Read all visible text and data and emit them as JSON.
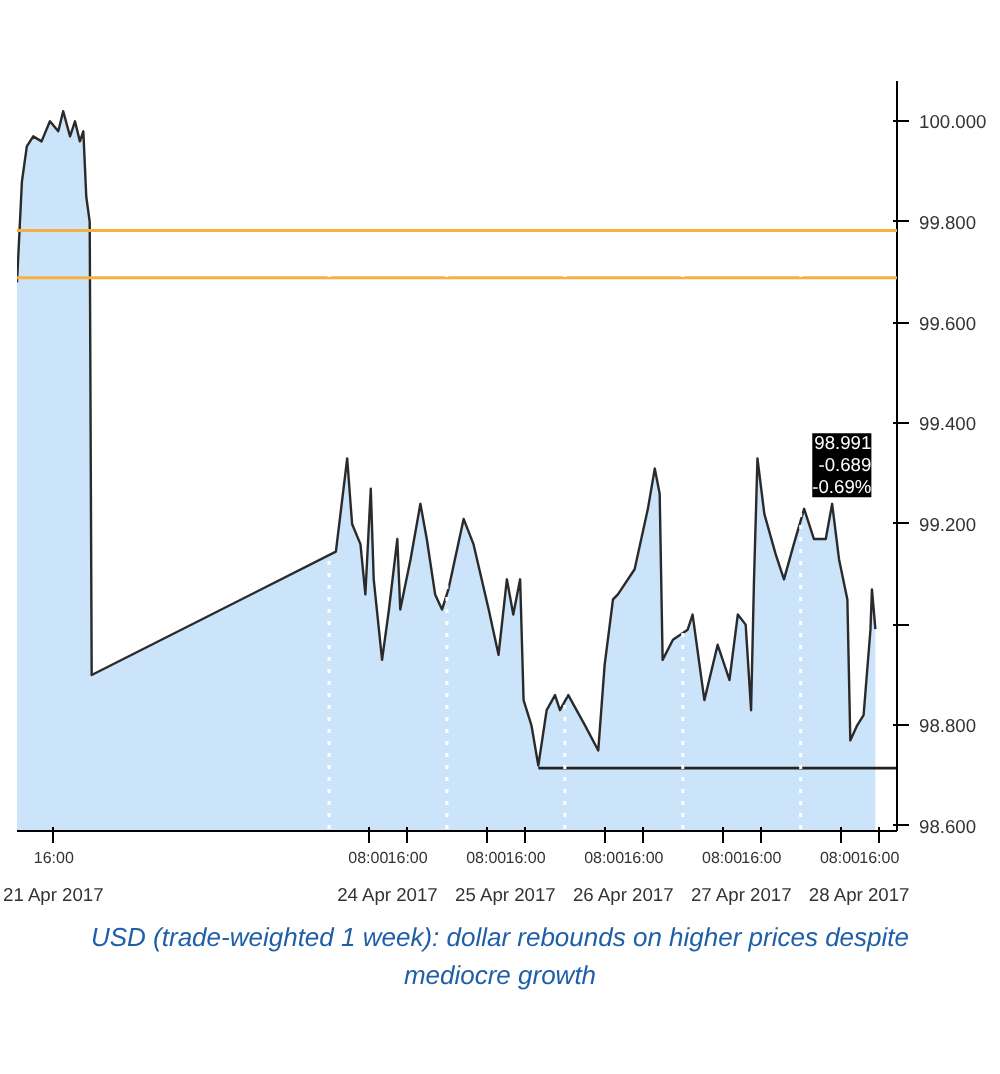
{
  "chart_data": {
    "type": "area",
    "x": [
      "2017-04-21T08:30",
      "2017-04-21T09:30",
      "2017-04-21T10:30",
      "2017-04-21T11:48",
      "2017-04-21T13:30",
      "2017-04-21T15:12",
      "2017-04-21T16:54",
      "2017-04-21T17:54",
      "2017-04-21T19:18",
      "2017-04-21T20:18",
      "2017-04-21T21:18",
      "2017-04-21T22:00",
      "2017-04-21T22:36",
      "2017-04-21T23:18",
      "2017-04-21T23:42",
      "2017-04-24T01:24",
      "2017-04-24T03:42",
      "2017-04-24T04:42",
      "2017-04-24T06:24",
      "2017-04-24T07:24",
      "2017-04-24T08:30",
      "2017-04-24T09:06",
      "2017-04-24T10:48",
      "2017-04-24T12:12",
      "2017-04-24T13:54",
      "2017-04-24T14:30",
      "2017-04-24T16:36",
      "2017-04-24T18:36",
      "2017-04-24T19:54",
      "2017-04-24T21:36",
      "2017-04-24T23:00",
      "2017-04-25T00:18",
      "2017-04-25T03:24",
      "2017-04-25T05:24",
      "2017-04-25T08:30",
      "2017-04-25T10:30",
      "2017-04-25T12:12",
      "2017-04-25T13:30",
      "2017-04-25T14:54",
      "2017-04-25T15:36",
      "2017-04-25T17:12",
      "2017-04-25T18:36",
      "2017-04-25T20:18",
      "2017-04-25T22:00",
      "2017-04-25T23:00",
      "2017-04-26T00:42",
      "2017-04-26T04:06",
      "2017-04-26T06:48",
      "2017-04-26T08:06",
      "2017-04-26T09:48",
      "2017-04-26T10:48",
      "2017-04-26T14:12",
      "2017-04-26T16:54",
      "2017-04-26T18:18",
      "2017-04-26T19:18",
      "2017-04-26T19:54",
      "2017-04-26T22:00",
      "2017-04-27T01:00",
      "2017-04-27T02:00",
      "2017-04-27T04:24",
      "2017-04-27T07:06",
      "2017-04-27T09:30",
      "2017-04-27T11:12",
      "2017-04-27T12:48",
      "2017-04-27T13:54",
      "2017-04-27T14:30",
      "2017-04-27T15:12",
      "2017-04-27T16:36",
      "2017-04-27T18:54",
      "2017-04-27T20:36",
      "2017-04-27T22:36",
      "2017-04-28T00:42",
      "2017-04-28T02:42",
      "2017-04-28T05:06",
      "2017-04-28T06:24",
      "2017-04-28T07:48",
      "2017-04-28T09:30",
      "2017-04-28T10:06",
      "2017-04-28T11:30",
      "2017-04-28T12:48",
      "2017-04-28T14:12",
      "2017-04-28T14:30",
      "2017-04-28T15:12"
    ],
    "series": [
      {
        "color": "#cce4fa",
        "values": [
          99.68,
          99.88,
          99.95,
          99.97,
          99.96,
          100.0,
          99.98,
          100.02,
          99.97,
          100.0,
          99.96,
          99.98,
          99.85,
          99.8,
          98.9,
          99.145,
          99.33,
          99.2,
          99.16,
          99.06,
          99.27,
          99.09,
          98.93,
          99.03,
          99.17,
          99.03,
          99.13,
          99.24,
          99.17,
          99.06,
          99.03,
          99.07,
          99.21,
          99.16,
          99.03,
          98.94,
          99.09,
          99.02,
          99.09,
          98.85,
          98.8,
          98.72,
          98.83,
          98.86,
          98.83,
          98.86,
          98.8,
          98.75,
          98.92,
          99.05,
          99.06,
          99.11,
          99.23,
          99.31,
          99.26,
          98.93,
          98.97,
          98.99,
          99.02,
          98.85,
          98.96,
          98.89,
          99.02,
          99.0,
          98.83,
          99.09,
          99.33,
          99.22,
          99.14,
          99.09,
          99.16,
          99.23,
          99.17,
          99.17,
          99.24,
          99.13,
          99.05,
          98.77,
          98.8,
          98.82,
          98.99,
          99.07,
          98.991
        ]
      },
      {
        "type": "line",
        "color": "#222222",
        "x": [
          "2017-04-25T18:36",
          "2017-04-28T19:36"
        ],
        "values": [
          98.715,
          98.715
        ]
      }
    ],
    "xlim": [
      "2017-04-21T08:30",
      "2017-04-28T19:36"
    ],
    "xticks": [
      {
        "value": "2017-04-21T16:00",
        "label": "16:00"
      },
      {
        "value": "2017-04-24T08:00",
        "label": "08:00"
      },
      {
        "value": "2017-04-24T16:00",
        "label": "16:00"
      },
      {
        "value": "2017-04-25T08:00",
        "label": "08:00"
      },
      {
        "value": "2017-04-25T16:00",
        "label": "16:00"
      },
      {
        "value": "2017-04-26T08:00",
        "label": "08:00"
      },
      {
        "value": "2017-04-26T16:00",
        "label": "16:00"
      },
      {
        "value": "2017-04-27T08:00",
        "label": "08:00"
      },
      {
        "value": "2017-04-27T16:00",
        "label": "16:00"
      },
      {
        "value": "2017-04-28T08:00",
        "label": "08:00"
      },
      {
        "value": "2017-04-28T16:00",
        "label": "16:00"
      }
    ],
    "x2lim": [
      "2017-04-21T08:30",
      "2017-04-28T19:36"
    ],
    "x2ticks": [
      {
        "value": "2017-04-21T16:00",
        "label": "21 Apr 2017"
      },
      {
        "value": "2017-04-24T12:00",
        "label": "24 Apr 2017"
      },
      {
        "value": "2017-04-25T12:00",
        "label": "25 Apr 2017"
      },
      {
        "value": "2017-04-26T12:00",
        "label": "26 Apr 2017"
      },
      {
        "value": "2017-04-27T12:00",
        "label": "27 Apr 2017"
      },
      {
        "value": "2017-04-28T12:00",
        "label": "28 Apr 2017"
      }
    ],
    "ylim": [
      98.59,
      100.08
    ],
    "yticks": [
      {
        "value": 98.6,
        "label": "98.600"
      },
      {
        "value": 98.8,
        "label": "98.800"
      },
      {
        "value": 99.0,
        "label": null
      },
      {
        "value": 99.2,
        "label": "99.200"
      },
      {
        "value": 99.4,
        "label": "99.400"
      },
      {
        "value": 99.6,
        "label": "99.600"
      },
      {
        "value": 99.8,
        "label": "99.800"
      },
      {
        "value": 100.0,
        "label": "100.000"
      }
    ],
    "ref_lines": [
      {
        "axis": "y",
        "value": 99.783,
        "color": "#f5b041"
      },
      {
        "axis": "y",
        "value": 99.689,
        "color": "#f5b041"
      },
      {
        "axis": "x",
        "value": "2017-04-24T00:00",
        "color": "#ffffff",
        "line_style": "dotted"
      },
      {
        "axis": "x",
        "value": "2017-04-25T00:00",
        "color": "#ffffff",
        "line_style": "dotted"
      },
      {
        "axis": "x",
        "value": "2017-04-26T00:00",
        "color": "#ffffff",
        "line_style": "dotted"
      },
      {
        "axis": "x",
        "value": "2017-04-27T00:00",
        "color": "#ffffff",
        "line_style": "dotted"
      },
      {
        "axis": "x",
        "value": "2017-04-28T00:00",
        "color": "#ffffff",
        "line_style": "dotted"
      }
    ],
    "annotations": [
      "98.991\n-0.689\n-0.69%",
      "USD (trade-weighted 1 week): dollar rebounds on higher prices despite mediocre growth"
    ],
    "grid": false
  }
}
